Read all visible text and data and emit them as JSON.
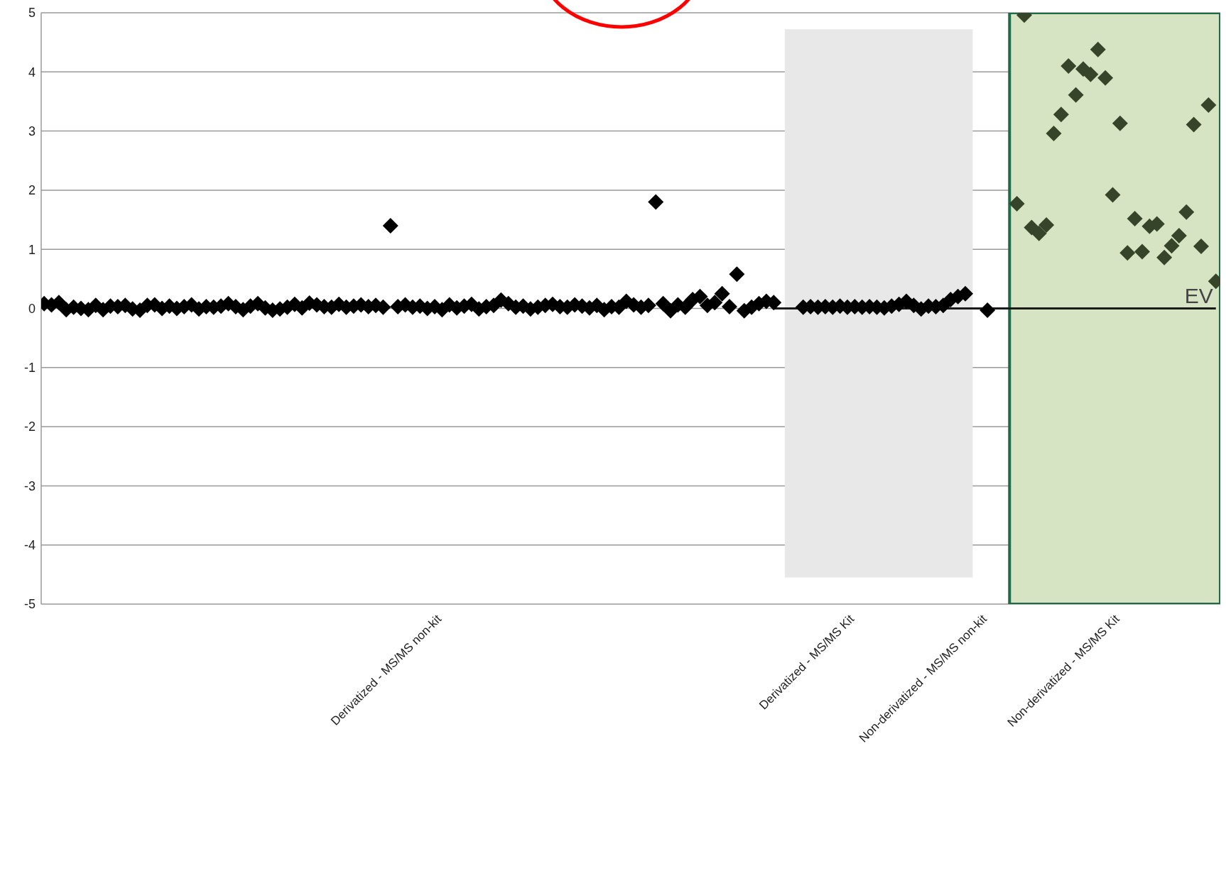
{
  "chart_data": {
    "type": "scatter",
    "marker": "diamond",
    "grid": "y",
    "legend": false,
    "categories": [
      null,
      null,
      null,
      null,
      null,
      null,
      null,
      null,
      null,
      null,
      null,
      null,
      null,
      null,
      null,
      null,
      null,
      null,
      null,
      null,
      null,
      null,
      null,
      null,
      null,
      null,
      null,
      null,
      null,
      null,
      null,
      null,
      null,
      null,
      null,
      null,
      null,
      null,
      null,
      null,
      null,
      null,
      null,
      null,
      null,
      null,
      null,
      null,
      null,
      null,
      null,
      null,
      null,
      null,
      null,
      "Derivatized - MS/MS non-kit",
      null,
      null,
      null,
      null,
      null,
      null,
      null,
      null,
      null,
      null,
      null,
      null,
      null,
      null,
      null,
      null,
      null,
      null,
      null,
      null,
      null,
      null,
      null,
      null,
      null,
      null,
      null,
      null,
      null,
      null,
      null,
      null,
      null,
      null,
      null,
      null,
      null,
      null,
      null,
      null,
      null,
      null,
      null,
      null,
      null,
      null,
      null,
      null,
      null,
      null,
      null,
      null,
      null,
      null,
      null,
      "Derivatized - MS/MS Kit",
      null,
      null,
      null,
      null,
      null,
      null,
      null,
      null,
      null,
      null,
      null,
      null,
      null,
      null,
      null,
      null,
      null,
      "Non-derivatized - MS/MS non-kit",
      null,
      null,
      null,
      null,
      null,
      null,
      null,
      null,
      null,
      null,
      null,
      null,
      null,
      null,
      null,
      null,
      null,
      "Non-derivatized - MS/MS Kit",
      null,
      null,
      null,
      null,
      null,
      null,
      null,
      null,
      null,
      null,
      null,
      null,
      null
    ],
    "ylim": [
      -5,
      5
    ],
    "yticks": [
      -5,
      -4,
      -3,
      -2,
      -1,
      0,
      1,
      2,
      3,
      4,
      5
    ],
    "series": [
      {
        "color": "#000000",
        "values": [
          null,
          0.08,
          0.06,
          0.1,
          -0.02,
          0.02,
          0,
          -0.02,
          0.05,
          -0.02,
          0.04,
          0.03,
          0.05,
          -0.01,
          -0.03,
          0.05,
          0.06,
          0,
          0.04,
          0,
          0.03,
          0.06,
          -0.01,
          0.03,
          0.02,
          0.04,
          0.08,
          0.03,
          -0.02,
          0.04,
          0.08,
          0.01,
          -0.03,
          -0.01,
          0.02,
          0.07,
          0.01,
          0.09,
          0.06,
          0.03,
          0.02,
          0.07,
          0.02,
          0.04,
          0.06,
          0.03,
          0.05,
          0.02,
          1.4,
          0.03,
          0.06,
          0.02,
          0.04,
          0,
          0.03,
          -0.02,
          0.06,
          0.01,
          0.04,
          0.07,
          -0.01,
          0.03,
          0.05,
          0.14,
          0.08,
          0.02,
          0.04,
          -0.01,
          0.02,
          0.05,
          0.07,
          0.03,
          0.02,
          0.06,
          0.04,
          0.01,
          0.05,
          -0.02,
          0.03,
          0.02,
          0.12,
          0.06,
          0.02,
          0.05,
          1.8,
          0.08,
          -0.04,
          0.06,
          0.02,
          0.15,
          0.2,
          0.05,
          0.1,
          0.25,
          0.03,
          0.58,
          -0.04,
          0.02,
          0.08,
          0.12,
          0.1,
          null,
          null,
          null,
          0.02,
          0.03,
          0.02,
          0.03,
          0.02,
          0.04,
          0.02,
          0.03,
          0.02,
          0.03,
          0.02,
          0.01,
          0.04,
          0.07,
          0.12,
          0.05,
          -0.01,
          0.04,
          0.03,
          0.05,
          0.15,
          0.2,
          0.25,
          null,
          null,
          -0.03,
          null,
          null,
          null,
          null,
          null,
          null,
          null,
          null,
          null,
          null,
          null,
          null,
          null,
          null,
          null,
          null,
          null,
          null,
          null,
          null,
          null,
          null,
          null,
          null,
          null,
          null,
          null,
          null,
          null,
          null,
          null
        ]
      },
      {
        "color": "#36452a",
        "values": [
          null,
          null,
          null,
          null,
          null,
          null,
          null,
          null,
          null,
          null,
          null,
          null,
          null,
          null,
          null,
          null,
          null,
          null,
          null,
          null,
          null,
          null,
          null,
          null,
          null,
          null,
          null,
          null,
          null,
          null,
          null,
          null,
          null,
          null,
          null,
          null,
          null,
          null,
          null,
          null,
          null,
          null,
          null,
          null,
          null,
          null,
          null,
          null,
          null,
          null,
          null,
          null,
          null,
          null,
          null,
          null,
          null,
          null,
          null,
          null,
          null,
          null,
          null,
          null,
          null,
          null,
          null,
          null,
          null,
          null,
          null,
          null,
          null,
          null,
          null,
          null,
          null,
          null,
          null,
          null,
          null,
          null,
          null,
          null,
          null,
          null,
          null,
          null,
          null,
          null,
          null,
          null,
          null,
          null,
          null,
          null,
          null,
          null,
          null,
          null,
          null,
          null,
          null,
          null,
          null,
          null,
          null,
          null,
          null,
          null,
          null,
          null,
          null,
          null,
          null,
          null,
          null,
          null,
          null,
          null,
          null,
          null,
          null,
          null,
          null,
          null,
          null,
          null,
          null,
          null,
          null,
          null,
          null,
          1.77,
          4.96,
          1.37,
          1.27,
          1.41,
          2.96,
          3.28,
          4.1,
          3.61,
          4.05,
          3.96,
          4.38,
          3.9,
          1.92,
          3.13,
          0.94,
          1.52,
          0.96,
          1.39,
          1.43,
          0.86,
          1.06,
          1.23,
          1.63,
          3.11,
          1.05,
          3.44,
          0.46
        ]
      },
      {
        "type": "line",
        "name": "EV",
        "color": "#1a1a1a",
        "marker": "none",
        "values": [
          null,
          null,
          null,
          null,
          null,
          null,
          null,
          null,
          null,
          null,
          null,
          null,
          null,
          null,
          null,
          null,
          null,
          null,
          null,
          null,
          null,
          null,
          null,
          null,
          null,
          null,
          null,
          null,
          null,
          null,
          null,
          null,
          null,
          null,
          null,
          null,
          null,
          null,
          null,
          null,
          null,
          null,
          null,
          null,
          null,
          null,
          null,
          null,
          null,
          null,
          null,
          null,
          null,
          null,
          null,
          null,
          null,
          null,
          null,
          null,
          null,
          null,
          null,
          null,
          null,
          null,
          null,
          null,
          null,
          null,
          null,
          null,
          null,
          null,
          null,
          null,
          null,
          null,
          null,
          null,
          null,
          null,
          null,
          null,
          null,
          null,
          null,
          null,
          null,
          null,
          null,
          null,
          null,
          null,
          null,
          null,
          null,
          null,
          null,
          null,
          0,
          0,
          0,
          0,
          0,
          0,
          0,
          0,
          0,
          0,
          0,
          0,
          0,
          0,
          0,
          0,
          0,
          0,
          0,
          0,
          0,
          0,
          0,
          0,
          0,
          0,
          0,
          0,
          0,
          0,
          0,
          0,
          0,
          0,
          0,
          0,
          0,
          0,
          0,
          0,
          0,
          0,
          0,
          0,
          0,
          0,
          0,
          0,
          0,
          0,
          0,
          0,
          0,
          0,
          0,
          0,
          0,
          0,
          0,
          0,
          0
        ]
      }
    ]
  }
}
